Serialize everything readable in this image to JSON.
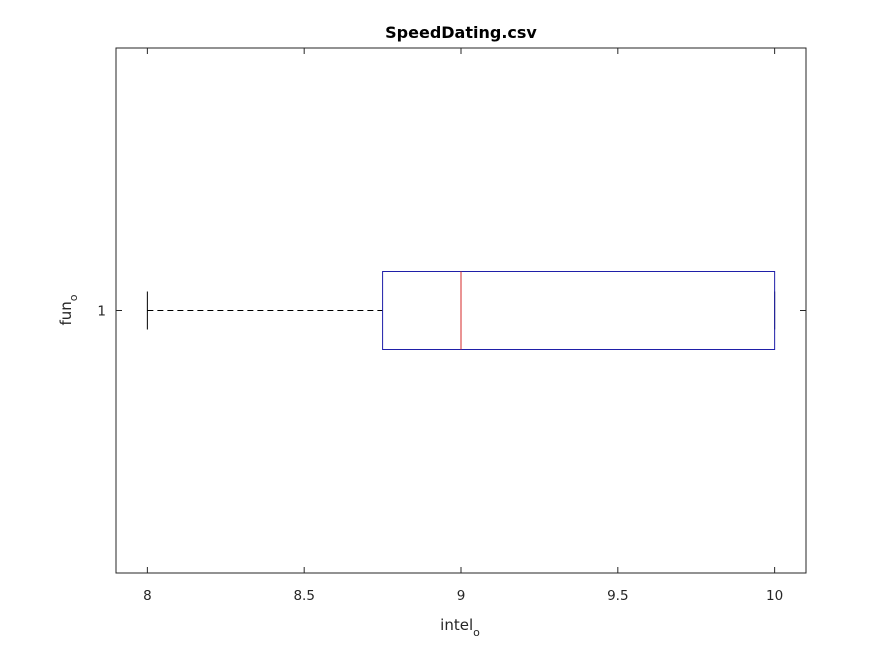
{
  "chart_data": {
    "type": "boxplot",
    "title": "SpeedDating.csv",
    "orientation": "horizontal",
    "xlabel": {
      "main": "intel",
      "sub": "o"
    },
    "ylabel": {
      "main": "fun",
      "sub": "o"
    },
    "xlim": [
      7.9,
      10.1
    ],
    "x_ticks": [
      8,
      8.5,
      9,
      9.5,
      10
    ],
    "x_tick_labels": [
      "8",
      "8.5",
      "9",
      "9.5",
      "10"
    ],
    "y_ticks": [
      1
    ],
    "y_tick_labels": [
      "1"
    ],
    "ylim": [
      0.5,
      1.5
    ],
    "boxes": [
      {
        "category": "1",
        "whisker_low": 8,
        "q1": 8.75,
        "median": 9,
        "q3": 10,
        "whisker_high": 10
      }
    ],
    "colors": {
      "box": "#1f1fa8",
      "median": "#d42a2a",
      "whisker": "#000000",
      "axis": "#262626"
    },
    "grid": false
  }
}
